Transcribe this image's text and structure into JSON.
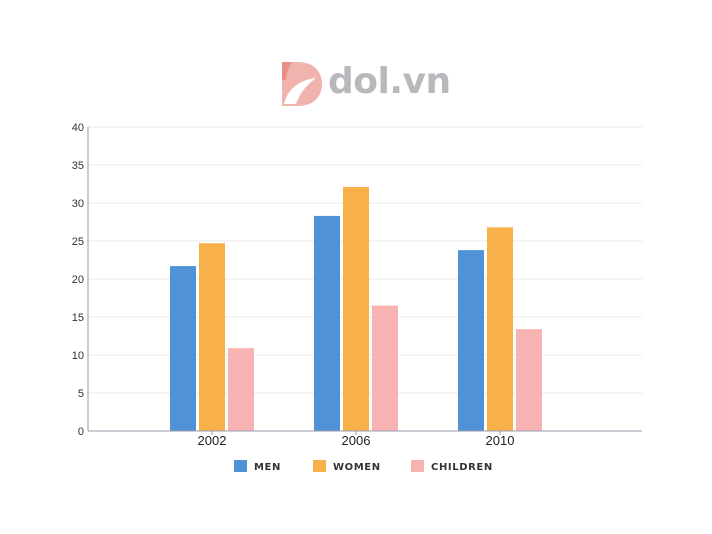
{
  "brand": {
    "name": "dol.vn"
  },
  "chart_data": {
    "type": "bar",
    "title": "",
    "xlabel": "",
    "ylabel": "",
    "categories": [
      "2002",
      "2006",
      "2010"
    ],
    "series": [
      {
        "name": "MEN",
        "values": [
          21.7,
          28.3,
          23.8
        ],
        "color": "#4f93d6"
      },
      {
        "name": "WOMEN",
        "values": [
          24.7,
          32.1,
          26.8
        ],
        "color": "#f8b04a"
      },
      {
        "name": "CHILDREN",
        "values": [
          10.9,
          16.5,
          13.4
        ],
        "color": "#f7b2b2"
      }
    ],
    "ylim": [
      0,
      40
    ],
    "yticks": [
      "0",
      "5",
      "10",
      "15",
      "20",
      "25",
      "30",
      "35",
      "40"
    ],
    "grid": true,
    "legend_position": "bottom-center"
  }
}
